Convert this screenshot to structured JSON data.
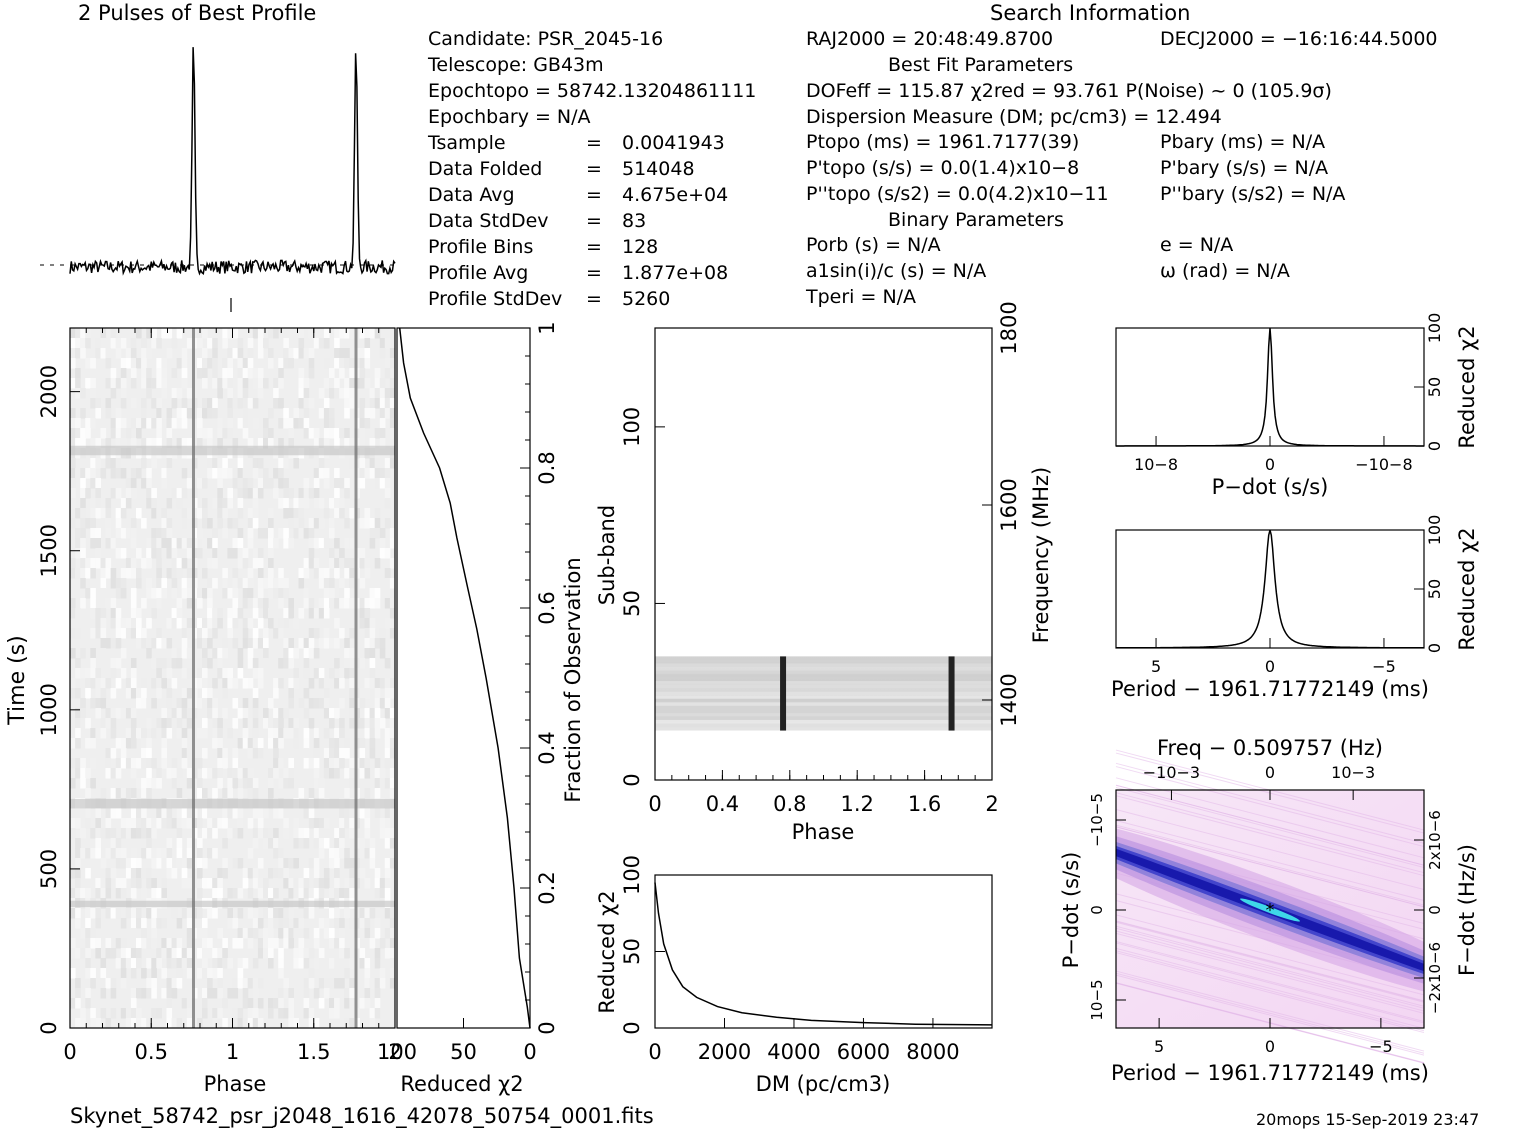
{
  "header": {
    "profile_title": "2 Pulses of Best Profile",
    "search_title": "Search Information",
    "footer_file": "Skynet_58742_psr_j2048_1616_42078_50754_0001.fits",
    "footer_stamp": "20mops 15-Sep-2019 23:47"
  },
  "candidate_info": {
    "candidate": "Candidate:  PSR_2045-16",
    "telescope": "Telescope:  GB43m",
    "epoch_topo": "Epochtopo = 58742.13204861111",
    "epoch_bary": "Epochbary = N/A",
    "rows": [
      {
        "label": "Tsample",
        "value": "0.0041943"
      },
      {
        "label": "Data Folded",
        "value": "514048"
      },
      {
        "label": "Data Avg",
        "value": "4.675e+04"
      },
      {
        "label": "Data StdDev",
        "value": "83"
      },
      {
        "label": "Profile Bins",
        "value": "128"
      },
      {
        "label": "Profile Avg",
        "value": "1.877e+08"
      },
      {
        "label": "Profile StdDev",
        "value": "5260"
      }
    ]
  },
  "search_info": {
    "ra": "RAJ2000 = 20:48:49.8700",
    "dec": "DECJ2000 = −16:16:44.5000",
    "best_fit_title": "Best Fit Parameters",
    "dof_line": "DOFeff = 115.87  χ2red = 93.761  P(Noise) ~ 0   (105.9σ)",
    "dm_line": "Dispersion Measure (DM; pc/cm3) = 12.494",
    "ptopo": "Ptopo (ms) =  1961.7177(39)",
    "pbary": "Pbary (ms) = N/A",
    "pdtopo": "P'topo (s/s) = 0.0(1.4)x10−8",
    "pdbary": "P'bary (s/s) = N/A",
    "pddtopo": "P''topo (s/s2) = 0.0(4.2)x10−11",
    "pddbary": "P''bary (s/s2) = N/A",
    "binary_title": "Binary Parameters",
    "porb": "Porb (s) = N/A",
    "e": "e = N/A",
    "a1sini": "a1sin(i)/c (s) = N/A",
    "omega": "ω (rad) = N/A",
    "tperi": "Tperi = N/A"
  },
  "chart_data": [
    {
      "name": "profile",
      "type": "line",
      "title": "2 Pulses of Best Profile",
      "xlim": [
        0,
        2
      ],
      "pulse_phases": [
        0.76,
        1.76
      ],
      "peak": 1.0,
      "baseline": 0.0
    },
    {
      "name": "time-phase",
      "type": "heatmap",
      "xlabel": "Phase",
      "ylabel": "Time (s)",
      "xlim": [
        0,
        2
      ],
      "ylim": [
        0,
        2200
      ],
      "x_ticks": [
        "0",
        "0.5",
        "1",
        "1.5",
        "2"
      ],
      "y_ticks": [
        "0",
        "500",
        "1000",
        "1500",
        "2000"
      ],
      "pulse_phases": [
        0.76,
        1.76
      ]
    },
    {
      "name": "reduced-chi2-vs-time",
      "type": "line",
      "xlabel": "Reduced χ2",
      "ylabel": "Fraction of Observation",
      "xlim": [
        100,
        0
      ],
      "ylim": [
        0,
        1
      ],
      "x_ticks": [
        "100",
        "50",
        "0"
      ],
      "y_ticks": [
        "0",
        "0.2",
        "0.4",
        "0.6",
        "0.8",
        "1"
      ],
      "points": [
        [
          0,
          0.0
        ],
        [
          2,
          0.03
        ],
        [
          8,
          0.1
        ],
        [
          12,
          0.2
        ],
        [
          17,
          0.3
        ],
        [
          24,
          0.4
        ],
        [
          33,
          0.5
        ],
        [
          40,
          0.57
        ],
        [
          47,
          0.63
        ],
        [
          55,
          0.7
        ],
        [
          60,
          0.75
        ],
        [
          68,
          0.8
        ],
        [
          80,
          0.85
        ],
        [
          90,
          0.9
        ],
        [
          95,
          0.95
        ],
        [
          98,
          1.0
        ]
      ]
    },
    {
      "name": "subband-phase",
      "type": "heatmap",
      "xlabel": "Phase",
      "ylabel": "Sub-band",
      "y2label": "Frequency (MHz)",
      "xlim": [
        0,
        2
      ],
      "ylim": [
        0,
        128
      ],
      "x_ticks": [
        "0",
        "0.4",
        "0.8",
        "1.2",
        "1.6",
        "2"
      ],
      "y_ticks": [
        "0",
        "50",
        "100"
      ],
      "y2_ticks": [
        "1400",
        "1600",
        "1800"
      ],
      "band": [
        14,
        35
      ],
      "pulse_phases": [
        0.76,
        1.76
      ]
    },
    {
      "name": "dm-curve",
      "type": "line",
      "xlabel": "DM (pc/cm3)",
      "ylabel": "Reduced χ2",
      "xlim": [
        0,
        9700
      ],
      "ylim": [
        0,
        100
      ],
      "x_ticks": [
        "0",
        "2000",
        "4000",
        "6000",
        "8000"
      ],
      "y_ticks": [
        "0",
        "50",
        "100"
      ],
      "points": [
        [
          0,
          95
        ],
        [
          100,
          75
        ],
        [
          250,
          55
        ],
        [
          500,
          38
        ],
        [
          800,
          27
        ],
        [
          1200,
          20
        ],
        [
          1800,
          14
        ],
        [
          2500,
          10
        ],
        [
          3500,
          7
        ],
        [
          4500,
          5
        ],
        [
          6000,
          3.5
        ],
        [
          7500,
          2.5
        ],
        [
          9700,
          2
        ]
      ]
    },
    {
      "name": "pdot-curve",
      "type": "line",
      "xlabel": "P−dot (s/s)",
      "ylabel": "Reduced χ2",
      "ylim": [
        0,
        100
      ],
      "x_ticks": [
        "10−8",
        "0",
        "−10−8"
      ],
      "y_ticks": [
        "0",
        "50",
        "100"
      ]
    },
    {
      "name": "period-curve",
      "type": "line",
      "xlabel": "Period − 1961.71772149 (ms)",
      "ylabel": "Reduced χ2",
      "xlim": [
        7,
        -7
      ],
      "ylim": [
        0,
        100
      ],
      "x_ticks": [
        "5",
        "0",
        "−5"
      ],
      "y_ticks": [
        "0",
        "50",
        "100"
      ]
    },
    {
      "name": "p-pdot-plane",
      "type": "heatmap",
      "title": "Freq − 0.509757 (Hz)",
      "xlabel": "Period − 1961.71772149 (ms)",
      "ylabel": "P−dot (s/s)",
      "y2label": "F−dot (Hz/s)",
      "x_ticks": [
        "5",
        "0",
        "−5"
      ],
      "x2_ticks": [
        "−10−3",
        "0",
        "10−3"
      ],
      "y_ticks": [
        "10−5",
        "0",
        "−10−5"
      ],
      "y2_ticks": [
        "−2x10−6",
        "0",
        "2x10−6"
      ]
    }
  ]
}
